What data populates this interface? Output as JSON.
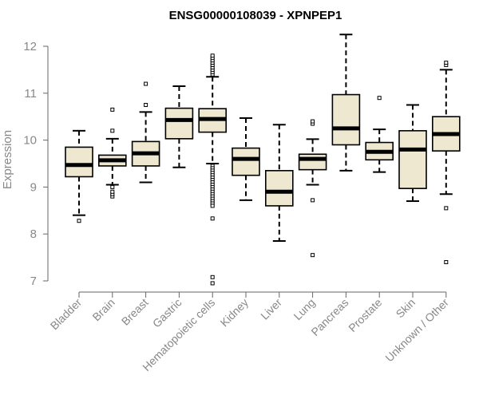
{
  "chart_data": {
    "type": "boxplot",
    "title": "ENSG00000108039 - XPNPEP1",
    "xlabel": "",
    "ylabel": "Expression",
    "ylim": [
      6.85,
      12.3
    ],
    "yticks": [
      "7",
      "8",
      "9",
      "10",
      "11",
      "12"
    ],
    "colors": {
      "box_fill": "#eee8d0",
      "box_stroke": "#000000",
      "axis": "#666666",
      "tick_text": "#888888"
    },
    "categories": [
      {
        "label": "Bladder",
        "lower_whisker": 8.4,
        "q1": 9.22,
        "median": 9.47,
        "q3": 9.85,
        "upper_whisker": 10.2,
        "outliers": [
          8.28
        ]
      },
      {
        "label": "Brain",
        "lower_whisker": 9.05,
        "q1": 9.45,
        "median": 9.57,
        "q3": 9.68,
        "upper_whisker": 10.03,
        "outliers": [
          8.8,
          8.85,
          8.9,
          9.0,
          10.2,
          10.65
        ]
      },
      {
        "label": "Breast",
        "lower_whisker": 9.1,
        "q1": 9.45,
        "median": 9.72,
        "q3": 9.97,
        "upper_whisker": 10.6,
        "outliers": [
          10.75,
          11.2
        ]
      },
      {
        "label": "Gastric",
        "lower_whisker": 9.42,
        "q1": 10.03,
        "median": 10.43,
        "q3": 10.68,
        "upper_whisker": 11.15,
        "outliers": []
      },
      {
        "label": "Hematopoietic cells",
        "lower_whisker": 9.5,
        "q1": 10.17,
        "median": 10.45,
        "q3": 10.67,
        "upper_whisker": 11.35,
        "outliers": [
          11.4,
          11.45,
          11.5,
          11.55,
          11.6,
          11.65,
          11.7,
          11.75,
          11.8,
          9.45,
          9.4,
          9.35,
          9.3,
          9.25,
          9.2,
          9.15,
          9.1,
          9.05,
          9.0,
          8.95,
          8.9,
          8.85,
          8.8,
          8.75,
          8.7,
          8.65,
          8.6,
          8.33,
          7.08,
          6.95
        ]
      },
      {
        "label": "Kidney",
        "lower_whisker": 8.72,
        "q1": 9.25,
        "median": 9.6,
        "q3": 9.83,
        "upper_whisker": 10.47,
        "outliers": []
      },
      {
        "label": "Liver",
        "lower_whisker": 7.85,
        "q1": 8.6,
        "median": 8.9,
        "q3": 9.35,
        "upper_whisker": 10.33,
        "outliers": []
      },
      {
        "label": "Lung",
        "lower_whisker": 9.05,
        "q1": 9.37,
        "median": 9.6,
        "q3": 9.7,
        "upper_whisker": 10.02,
        "outliers": [
          10.35,
          10.4,
          8.72,
          7.55
        ]
      },
      {
        "label": "Pancreas",
        "lower_whisker": 9.35,
        "q1": 9.9,
        "median": 10.25,
        "q3": 10.97,
        "upper_whisker": 12.25,
        "outliers": []
      },
      {
        "label": "Prostate",
        "lower_whisker": 9.32,
        "q1": 9.58,
        "median": 9.75,
        "q3": 9.95,
        "upper_whisker": 10.23,
        "outliers": [
          10.9
        ]
      },
      {
        "label": "Skin",
        "lower_whisker": 8.7,
        "q1": 8.97,
        "median": 9.8,
        "q3": 10.2,
        "upper_whisker": 10.75,
        "outliers": []
      },
      {
        "label": "Unknown / Other",
        "lower_whisker": 8.85,
        "q1": 9.77,
        "median": 10.13,
        "q3": 10.5,
        "upper_whisker": 11.5,
        "outliers": [
          11.6,
          11.65,
          8.55,
          7.4
        ]
      }
    ]
  }
}
